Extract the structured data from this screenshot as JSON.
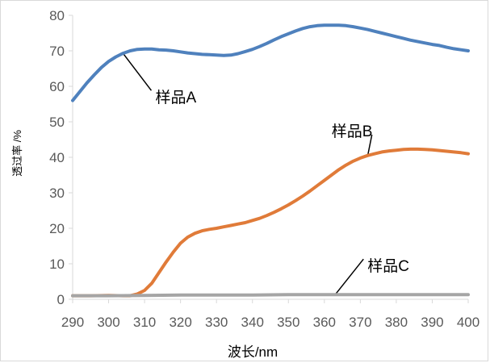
{
  "chart_data": {
    "type": "line",
    "title": "",
    "xlabel": "波长/nm",
    "ylabel": "透过率 /%",
    "xlim": [
      290,
      400
    ],
    "ylim": [
      0,
      80
    ],
    "xticks": [
      290,
      300,
      310,
      320,
      330,
      340,
      350,
      360,
      370,
      380,
      390,
      400
    ],
    "yticks": [
      0,
      10,
      20,
      30,
      40,
      50,
      60,
      70,
      80
    ],
    "grid": false,
    "series": [
      {
        "name": "样品A",
        "color": "#4f81bd",
        "x": [
          290,
          292,
          294,
          296,
          298,
          300,
          302,
          304,
          306,
          308,
          310,
          312,
          314,
          316,
          318,
          320,
          322,
          324,
          326,
          328,
          330,
          332,
          334,
          336,
          338,
          340,
          342,
          344,
          346,
          348,
          350,
          352,
          354,
          356,
          358,
          360,
          362,
          364,
          366,
          368,
          370,
          372,
          374,
          376,
          378,
          380,
          382,
          384,
          386,
          388,
          390,
          392,
          394,
          396,
          398,
          400
        ],
        "y": [
          56,
          58.5,
          61,
          63.2,
          65.3,
          67,
          68.3,
          69.3,
          70,
          70.4,
          70.5,
          70.5,
          70.3,
          70.2,
          70,
          69.7,
          69.4,
          69.2,
          69,
          68.9,
          68.8,
          68.7,
          68.8,
          69.2,
          69.8,
          70.4,
          71.2,
          72.1,
          73.1,
          74,
          74.8,
          75.6,
          76.3,
          76.8,
          77.1,
          77.2,
          77.2,
          77.2,
          77.1,
          76.8,
          76.4,
          76,
          75.5,
          75,
          74.5,
          74,
          73.5,
          73,
          72.6,
          72.2,
          71.8,
          71.5,
          71,
          70.6,
          70.3,
          70
        ]
      },
      {
        "name": "样品B",
        "color": "#e07b39",
        "x": [
          290,
          295,
          300,
          304,
          306,
          308,
          310,
          312,
          314,
          316,
          318,
          320,
          322,
          324,
          326,
          328,
          330,
          332,
          334,
          336,
          338,
          340,
          342,
          344,
          346,
          348,
          350,
          352,
          354,
          356,
          358,
          360,
          362,
          364,
          366,
          368,
          370,
          372,
          374,
          376,
          378,
          380,
          382,
          384,
          386,
          388,
          390,
          392,
          394,
          396,
          398,
          400
        ],
        "y": [
          1,
          1,
          1.1,
          1,
          1,
          1.5,
          2.5,
          4.5,
          7.5,
          10.5,
          13.3,
          15.8,
          17.5,
          18.6,
          19.3,
          19.7,
          20,
          20.4,
          20.8,
          21.2,
          21.6,
          22.2,
          22.8,
          23.6,
          24.5,
          25.5,
          26.6,
          27.8,
          29.1,
          30.5,
          32,
          33.5,
          35,
          36.5,
          37.8,
          38.9,
          39.8,
          40.5,
          41,
          41.5,
          41.8,
          42,
          42.2,
          42.3,
          42.3,
          42.2,
          42.1,
          41.9,
          41.7,
          41.5,
          41.3,
          41
        ]
      },
      {
        "name": "样品C",
        "color": "#a5a5a5",
        "x": [
          290,
          300,
          310,
          320,
          330,
          340,
          350,
          360,
          370,
          380,
          390,
          400
        ],
        "y": [
          1,
          1,
          1.1,
          1.2,
          1.2,
          1.2,
          1.3,
          1.3,
          1.3,
          1.3,
          1.3,
          1.3
        ]
      }
    ],
    "annotations": [
      {
        "text": "样品A",
        "series": "样品A",
        "point": [
          304,
          69.3
        ],
        "label_at": [
          313,
          57
        ]
      },
      {
        "text": "样品B",
        "series": "样品B",
        "point": [
          372,
          40.2
        ],
        "label_at": [
          362,
          47.5
        ]
      },
      {
        "text": "样品C",
        "series": "样品C",
        "point": [
          363,
          1.3
        ],
        "label_at": [
          372,
          9.5
        ]
      }
    ]
  }
}
